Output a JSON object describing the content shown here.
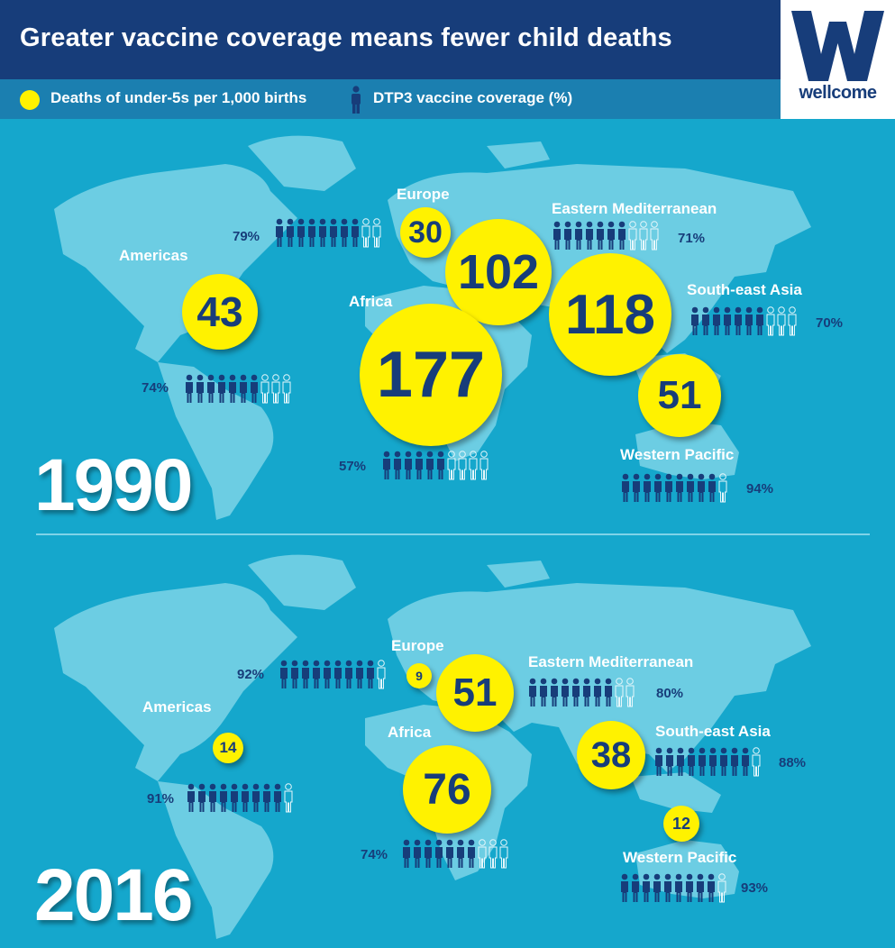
{
  "header": {
    "title": "Greater vaccine coverage means fewer child deaths",
    "legend_deaths": "Deaths of under-5s per 1,000 births",
    "legend_vaccine": "DTP3 vaccine coverage (%)",
    "logo_text": "wellcome"
  },
  "colors": {
    "background": "#15a7cc",
    "header": "#173d7a",
    "bubble": "#fff200",
    "person_filled": "#173d7a",
    "map": "#6ccde3"
  },
  "chart_data": [
    {
      "type": "bubble-map",
      "year": "1990",
      "regions": [
        {
          "name": "Americas",
          "deaths": 43,
          "deaths_label": "43",
          "coverage": 74,
          "coverage_label": "74%"
        },
        {
          "name": "Europe",
          "deaths": 30,
          "deaths_label": "30",
          "coverage": 79,
          "coverage_label": "79%"
        },
        {
          "name": "Eastern Mediterranean",
          "deaths": 102,
          "deaths_label": "102",
          "coverage": 71,
          "coverage_label": "71%"
        },
        {
          "name": "Africa",
          "deaths": 177,
          "deaths_label": "177",
          "coverage": 57,
          "coverage_label": "57%"
        },
        {
          "name": "South-east Asia",
          "deaths": 118,
          "deaths_label": "118",
          "coverage": 70,
          "coverage_label": "70%"
        },
        {
          "name": "Western Pacific",
          "deaths": 51,
          "deaths_label": "51",
          "coverage": 94,
          "coverage_label": "94%"
        }
      ]
    },
    {
      "type": "bubble-map",
      "year": "2016",
      "regions": [
        {
          "name": "Americas",
          "deaths": 14,
          "deaths_label": "14",
          "coverage": 91,
          "coverage_label": "91%"
        },
        {
          "name": "Europe",
          "deaths": 9,
          "deaths_label": "9",
          "coverage": 92,
          "coverage_label": "92%"
        },
        {
          "name": "Eastern Mediterranean",
          "deaths": 51,
          "deaths_label": "51",
          "coverage": 80,
          "coverage_label": "80%"
        },
        {
          "name": "Africa",
          "deaths": 76,
          "deaths_label": "76",
          "coverage": 74,
          "coverage_label": "74%"
        },
        {
          "name": "South-east Asia",
          "deaths": 38,
          "deaths_label": "38",
          "coverage": 88,
          "coverage_label": "88%"
        },
        {
          "name": "Western Pacific",
          "deaths": 12,
          "deaths_label": "12",
          "coverage": 93,
          "coverage_label": "93%"
        }
      ]
    }
  ]
}
